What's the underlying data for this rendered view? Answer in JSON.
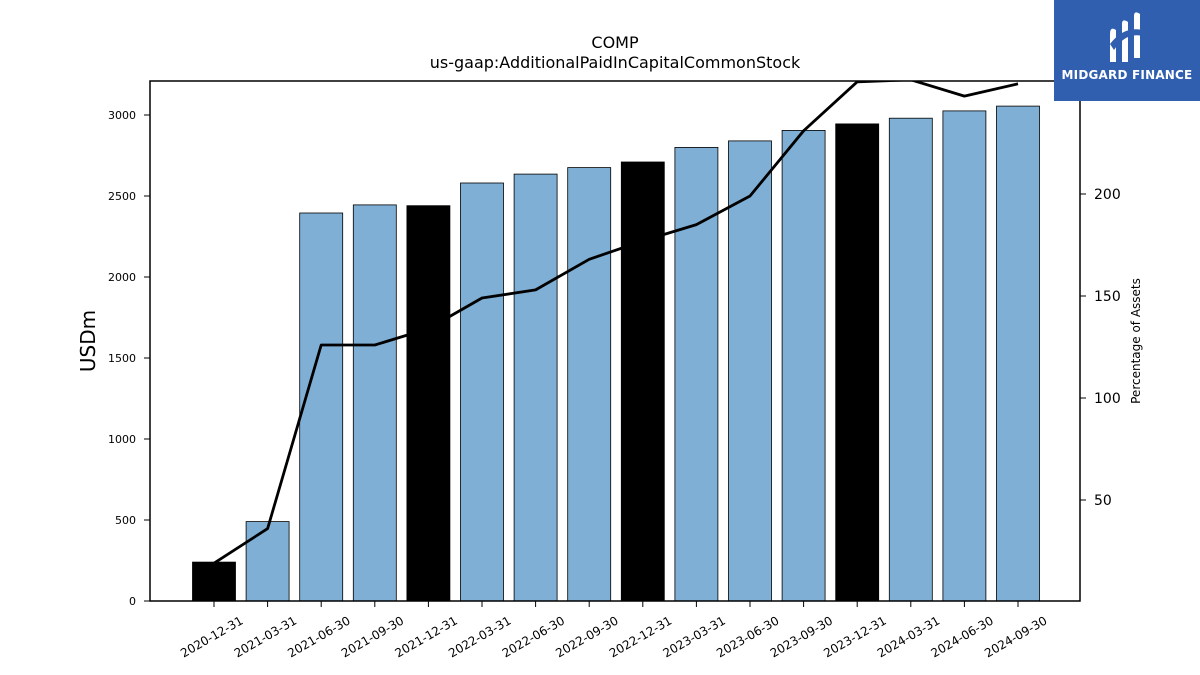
{
  "chart_data": {
    "type": "bar",
    "title": "COMP",
    "subtitle": "us-gaap:AdditionalPaidInCapitalCommonStock",
    "ylabel": "USDm",
    "y2label": "Percentage of Assets",
    "ylim": [
      0,
      3200
    ],
    "y2lim": [
      2,
      256
    ],
    "yticks": [
      0,
      500,
      1000,
      1500,
      2000,
      2500,
      3000
    ],
    "y2ticks": [
      50,
      100,
      150,
      200
    ],
    "categories": [
      "2020-12-31",
      "2021-03-31",
      "2021-06-30",
      "2021-09-30",
      "2021-12-31",
      "2022-03-31",
      "2022-06-30",
      "2022-09-30",
      "2022-12-31",
      "2023-03-31",
      "2023-06-30",
      "2023-09-30",
      "2023-12-31",
      "2024-03-31",
      "2024-06-30",
      "2024-09-30"
    ],
    "series": [
      {
        "type": "bar",
        "values": [
          240,
          490,
          2395,
          2445,
          2440,
          2580,
          2635,
          2675,
          2710,
          2800,
          2840,
          2905,
          2945,
          2980,
          3025,
          3055
        ],
        "colors": [
          "#000000",
          "#7fafd4",
          "#7fafd4",
          "#7fafd4",
          "#000000",
          "#7fafd4",
          "#7fafd4",
          "#7fafd4",
          "#000000",
          "#7fafd4",
          "#7fafd4",
          "#7fafd4",
          "#000000",
          "#7fafd4",
          "#7fafd4",
          "#7fafd4"
        ]
      },
      {
        "type": "line",
        "axis": "right",
        "color": "#000000",
        "values": [
          19,
          36,
          126,
          126,
          134,
          149,
          153,
          168,
          177,
          185,
          199,
          231,
          255,
          256,
          248,
          254
        ]
      }
    ],
    "grid": false,
    "legend": "none"
  },
  "logo": {
    "text": "MIDGARD FINANCE",
    "background": "#2f5fae"
  }
}
